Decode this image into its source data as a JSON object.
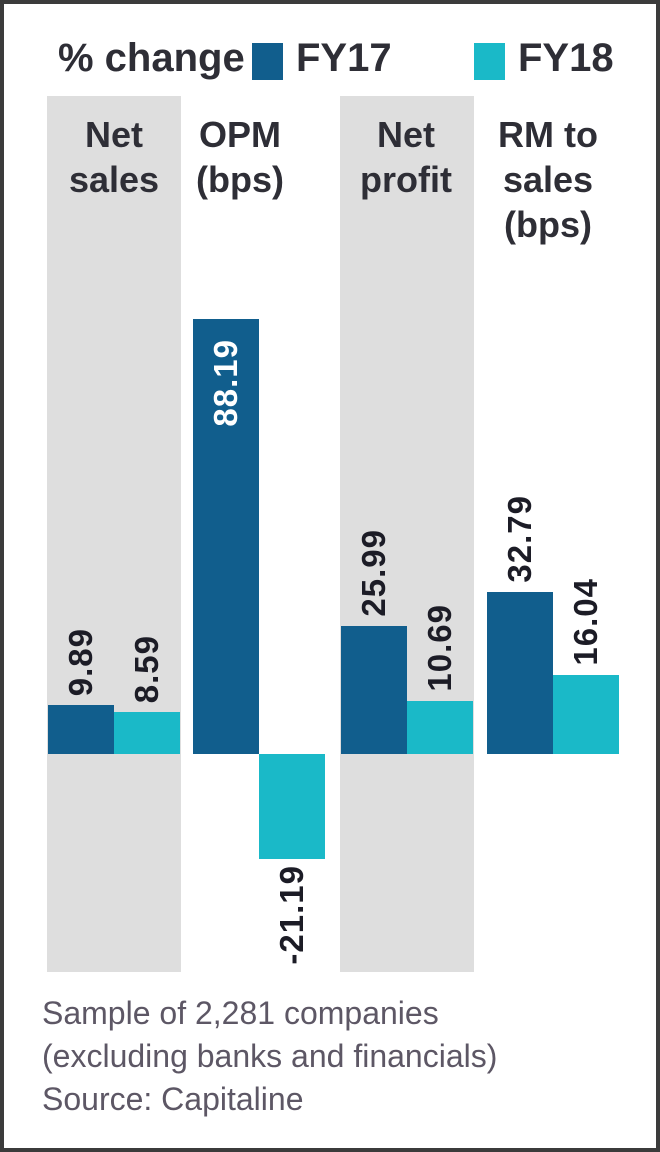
{
  "chart": {
    "title": "% change",
    "footer": {
      "line1": "Sample of 2,281 companies",
      "line2": "(excluding banks and financials)",
      "line3": "Source: Capitaline"
    }
  },
  "chart_data": {
    "type": "bar",
    "title": "% change",
    "xlabel": "",
    "ylabel": "",
    "categories": [
      "Net sales",
      "OPM (bps)",
      "Net profit",
      "RM to sales (bps)"
    ],
    "category_lines": [
      [
        "Net",
        "sales"
      ],
      [
        "OPM",
        "(bps)"
      ],
      [
        "Net",
        "profit"
      ],
      [
        "RM to",
        "sales",
        "(bps)"
      ]
    ],
    "series": [
      {
        "name": "FY17",
        "color": "#115e8d",
        "values": [
          9.89,
          88.19,
          25.99,
          32.79
        ],
        "labels": [
          "9.89",
          "88.19",
          "25.99",
          "32.79"
        ]
      },
      {
        "name": "FY18",
        "color": "#1ab9c8",
        "values": [
          8.59,
          -21.19,
          10.69,
          16.04
        ],
        "labels": [
          "8.59",
          "-21.19",
          "10.69",
          "16.04"
        ]
      }
    ],
    "baseline": 0,
    "grid": false,
    "legend_position": "top",
    "value_label_rotation": -90,
    "column_backgrounds": {
      "color": "#dedede",
      "applied_to": [
        "Net sales",
        "Net profit"
      ]
    }
  },
  "theme": {
    "fy17": "#115e8d",
    "fy18": "#1ab9c8",
    "column_bg": "#dedede",
    "border": "#3b3b3b",
    "heading_text": "#2e2e36",
    "value_text": "#1c1c26",
    "value_text_inverse": "#ffffff",
    "footer_text": "#5d5765"
  }
}
